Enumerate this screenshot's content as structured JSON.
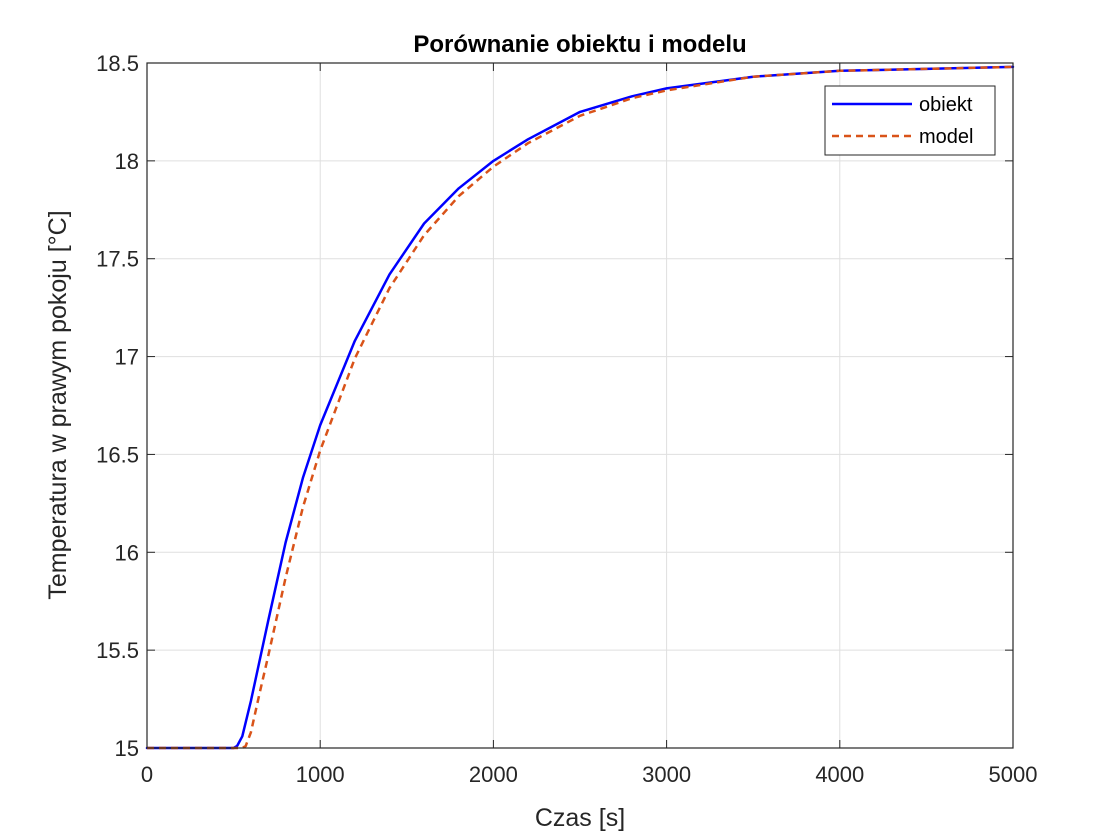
{
  "chart_data": {
    "type": "line",
    "title": "Porównanie obiektu i modelu",
    "xlabel": "Czas [s]",
    "ylabel": "Temperatura w prawym pokoju [°C]",
    "xlim": [
      0,
      5000
    ],
    "ylim": [
      15,
      18.5
    ],
    "xticks": [
      0,
      1000,
      2000,
      3000,
      4000,
      5000
    ],
    "yticks": [
      15,
      15.5,
      16,
      16.5,
      17,
      17.5,
      18,
      18.5
    ],
    "xtick_labels": [
      "0",
      "1000",
      "2000",
      "3000",
      "4000",
      "5000"
    ],
    "ytick_labels": [
      "15",
      "15.5",
      "16",
      "16.5",
      "17",
      "17.5",
      "18",
      "18.5"
    ],
    "grid": true,
    "legend_position": "top-right",
    "series": [
      {
        "name": "obiekt",
        "color": "#0000ff",
        "dash": "solid",
        "points": [
          [
            0,
            15
          ],
          [
            500,
            15
          ],
          [
            520,
            15.01
          ],
          [
            550,
            15.06
          ],
          [
            600,
            15.24
          ],
          [
            700,
            15.65
          ],
          [
            800,
            16.05
          ],
          [
            900,
            16.38
          ],
          [
            1000,
            16.65
          ],
          [
            1200,
            17.08
          ],
          [
            1400,
            17.42
          ],
          [
            1600,
            17.68
          ],
          [
            1800,
            17.86
          ],
          [
            2000,
            18.0
          ],
          [
            2200,
            18.11
          ],
          [
            2500,
            18.25
          ],
          [
            2800,
            18.33
          ],
          [
            3000,
            18.37
          ],
          [
            3500,
            18.43
          ],
          [
            4000,
            18.46
          ],
          [
            4500,
            18.47
          ],
          [
            5000,
            18.48
          ]
        ]
      },
      {
        "name": "model",
        "color": "#d95319",
        "dash": "dashed",
        "points": [
          [
            0,
            15
          ],
          [
            550,
            15
          ],
          [
            570,
            15.01
          ],
          [
            600,
            15.08
          ],
          [
            650,
            15.28
          ],
          [
            700,
            15.47
          ],
          [
            800,
            15.87
          ],
          [
            900,
            16.23
          ],
          [
            1000,
            16.52
          ],
          [
            1200,
            16.99
          ],
          [
            1400,
            17.35
          ],
          [
            1600,
            17.62
          ],
          [
            1800,
            17.82
          ],
          [
            2000,
            17.97
          ],
          [
            2200,
            18.09
          ],
          [
            2500,
            18.23
          ],
          [
            2800,
            18.32
          ],
          [
            3000,
            18.36
          ],
          [
            3500,
            18.43
          ],
          [
            4000,
            18.46
          ],
          [
            4500,
            18.47
          ],
          [
            5000,
            18.48
          ]
        ]
      }
    ]
  }
}
